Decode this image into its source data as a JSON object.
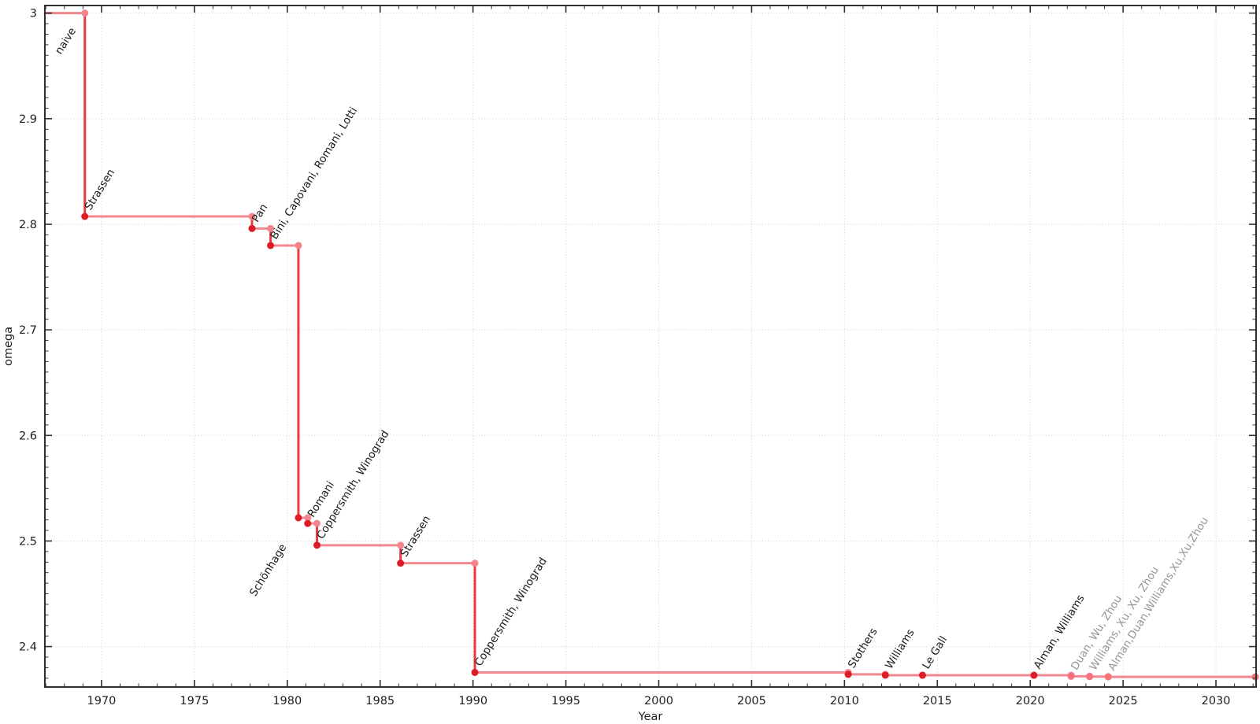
{
  "chart_data": {
    "type": "line",
    "subtype": "step-post",
    "title": "",
    "xlabel": "Year",
    "ylabel": "omega",
    "xlim": [
      1966.95,
      2032.16
    ],
    "ylim": [
      2.3617,
      3.0072
    ],
    "grid": true,
    "legend": "none",
    "x_major_ticks": [
      1970,
      1975,
      1980,
      1985,
      1990,
      1995,
      2000,
      2005,
      2010,
      2015,
      2020,
      2025,
      2030
    ],
    "x_minor_step": 1,
    "y_major_ticks": [
      {
        "v": 2.4,
        "label": "2.4"
      },
      {
        "v": 2.5,
        "label": "2.5"
      },
      {
        "v": 2.6,
        "label": "2.6"
      },
      {
        "v": 2.7,
        "label": "2.7"
      },
      {
        "v": 2.8,
        "label": "2.8"
      },
      {
        "v": 2.9,
        "label": "2.9"
      },
      {
        "v": 3.0,
        "label": "3"
      }
    ],
    "y_minor_step": 0.01,
    "start": {
      "year": 1966.95,
      "omega": 3.0
    },
    "extra_labels": [
      {
        "label": "naive",
        "year": 1969.1,
        "omega": 3.0,
        "anchor": "end",
        "offset": [
          -11,
          22
        ],
        "status": "confirmed"
      }
    ],
    "events": [
      {
        "label": "Strassen",
        "year": 1969.1,
        "omega": 2.8074,
        "status": "confirmed"
      },
      {
        "label": "Pan",
        "year": 1978.1,
        "omega": 2.796,
        "status": "confirmed"
      },
      {
        "label": "Bini, Capovani, Romani, Lotti",
        "year": 1979.1,
        "omega": 2.7799,
        "status": "confirmed"
      },
      {
        "label": "Schönhage",
        "year": 1980.6,
        "omega": 2.522,
        "status": "confirmed",
        "anchor": "end",
        "offset": [
          -15,
          37
        ]
      },
      {
        "label": "Romani",
        "year": 1981.1,
        "omega": 2.5166,
        "status": "confirmed"
      },
      {
        "label": "Coppersmith, Winograd",
        "year": 1981.6,
        "omega": 2.496,
        "status": "confirmed"
      },
      {
        "label": "Strassen",
        "year": 1986.1,
        "omega": 2.479,
        "status": "confirmed"
      },
      {
        "label": "Coppersmith, Winograd",
        "year": 1990.1,
        "omega": 2.3755,
        "status": "confirmed"
      },
      {
        "label": "Stothers",
        "year": 2010.2,
        "omega": 2.3737,
        "status": "confirmed"
      },
      {
        "label": "Williams",
        "year": 2012.2,
        "omega": 2.3729,
        "status": "confirmed"
      },
      {
        "label": "Le Gall",
        "year": 2014.2,
        "omega": 2.3728639,
        "status": "confirmed"
      },
      {
        "label": "Alman, Williams",
        "year": 2020.2,
        "omega": 2.3728596,
        "status": "confirmed"
      },
      {
        "label": "Duan, Wu, Zhou",
        "year": 2022.2,
        "omega": 2.371866,
        "status": "preprint"
      },
      {
        "label": "Williams, Xu, Xu, Zhou",
        "year": 2023.2,
        "omega": 2.371552,
        "status": "preprint"
      },
      {
        "label": "Alman,Duan,Williams,Xu,Xu,Zhou",
        "year": 2024.2,
        "omega": 2.371339,
        "status": "preprint"
      }
    ],
    "end_marker": true,
    "label_rotation_deg": -58,
    "colors": {
      "step_line": "#f2878d",
      "drop_line": "#e93a42",
      "point_confirmed": "#dd1c25",
      "point_preprint": "#f4737b",
      "corner_point": "#f4858c",
      "label_confirmed": "#1a1a1a",
      "label_preprint": "#969696",
      "grid": "#cdcdcd",
      "axis": "#2f2f2f",
      "tick_label": "#1f1f1f"
    }
  }
}
